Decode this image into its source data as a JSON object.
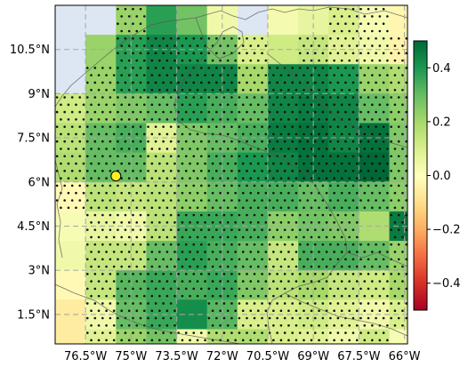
{
  "chart_data": {
    "type": "heatmap",
    "title": "",
    "xlabel": "",
    "ylabel": "",
    "x_ticks": [
      "76.5°W",
      "75°W",
      "73.5°W",
      "72°W",
      "70.5°W",
      "69°W",
      "67.5°W",
      "66°W"
    ],
    "x_tick_values": [
      -76.5,
      -75,
      -73.5,
      -72,
      -70.5,
      -69,
      -67.5,
      -66
    ],
    "y_ticks": [
      "10.5°N",
      "9°N",
      "7.5°N",
      "6°N",
      "4.5°N",
      "3°N",
      "1.5°N"
    ],
    "y_tick_values": [
      10.5,
      9,
      7.5,
      6,
      4.5,
      3,
      1.5
    ],
    "xlim": [
      -77.5,
      -65.9
    ],
    "ylim": [
      0.5,
      12.0
    ],
    "grid": true,
    "cell_size_deg": 1.0,
    "lon_edges": [
      -77.5,
      -76.5,
      -75.5,
      -74.5,
      -73.5,
      -72.5,
      -71.5,
      -70.5,
      -69.5,
      -68.5,
      -67.5,
      -66.5,
      -65.5
    ],
    "lat_edges": [
      12.0,
      11.0,
      10.0,
      9.0,
      8.0,
      7.0,
      6.0,
      5.0,
      4.0,
      3.0,
      2.0,
      1.0,
      0.0
    ],
    "colorbar": {
      "colormap": "RdYlGn",
      "range": [
        -0.5,
        0.5
      ],
      "ticks": [
        0.4,
        0.2,
        0.0,
        -0.2,
        -0.4
      ],
      "tick_labels": [
        "0.4",
        "0.2",
        "0.0",
        "−0.2",
        "−0.4"
      ]
    },
    "values": [
      [
        null,
        null,
        0.22,
        0.38,
        0.28,
        0.04,
        null,
        0.03,
        0.06,
        0.1,
        0.02,
        -0.03
      ],
      [
        null,
        0.22,
        0.38,
        0.44,
        0.4,
        0.28,
        0.1,
        0.12,
        0.14,
        0.08,
        0.04,
        -0.04
      ],
      [
        null,
        0.22,
        0.38,
        0.44,
        0.44,
        0.44,
        0.2,
        0.44,
        0.44,
        0.4,
        0.22,
        0.18
      ],
      [
        0.12,
        0.22,
        0.26,
        0.3,
        0.38,
        0.34,
        0.3,
        0.44,
        0.46,
        0.44,
        0.3,
        0.24
      ],
      [
        0.16,
        0.3,
        0.34,
        0.08,
        0.26,
        0.3,
        0.34,
        0.46,
        0.48,
        0.44,
        0.48,
        0.26
      ],
      [
        0.18,
        0.3,
        0.3,
        0.16,
        0.26,
        0.34,
        0.4,
        0.44,
        0.48,
        0.48,
        0.5,
        0.26
      ],
      [
        -0.02,
        0.16,
        0.14,
        0.16,
        0.24,
        0.3,
        0.34,
        0.34,
        0.3,
        0.34,
        0.3,
        0.24
      ],
      [
        0.02,
        0.06,
        0.04,
        0.16,
        0.36,
        0.36,
        0.34,
        0.24,
        0.28,
        0.26,
        0.18,
        0.46
      ],
      [
        0.04,
        0.14,
        0.14,
        0.3,
        0.38,
        0.34,
        0.3,
        0.14,
        0.34,
        0.34,
        0.3,
        0.22
      ],
      [
        -0.02,
        0.14,
        0.32,
        0.36,
        0.34,
        0.36,
        0.26,
        0.16,
        0.2,
        0.14,
        0.12,
        0.2
      ],
      [
        -0.06,
        0.04,
        0.3,
        0.36,
        0.42,
        0.32,
        0.1,
        0.1,
        0.12,
        0.08,
        0.04,
        0.1
      ],
      [
        -0.06,
        0.08,
        0.22,
        0.28,
        0.04,
        0.18,
        0.18,
        0.1,
        0.08,
        0.04,
        0.12,
        0.02
      ]
    ],
    "stippled": [
      [
        0,
        0,
        1,
        0,
        0,
        0,
        0,
        0,
        0,
        1,
        1,
        0
      ],
      [
        0,
        0,
        1,
        1,
        1,
        1,
        1,
        0,
        1,
        1,
        1,
        1
      ],
      [
        0,
        1,
        1,
        1,
        1,
        1,
        1,
        1,
        1,
        1,
        1,
        1
      ],
      [
        1,
        1,
        1,
        1,
        1,
        1,
        1,
        1,
        1,
        1,
        1,
        1
      ],
      [
        1,
        1,
        1,
        1,
        1,
        1,
        1,
        1,
        1,
        1,
        1,
        1
      ],
      [
        1,
        1,
        1,
        1,
        1,
        1,
        1,
        1,
        1,
        1,
        1,
        1
      ],
      [
        1,
        1,
        1,
        1,
        1,
        1,
        1,
        1,
        1,
        1,
        1,
        1
      ],
      [
        0,
        1,
        1,
        1,
        1,
        1,
        1,
        1,
        1,
        1,
        0,
        1
      ],
      [
        0,
        1,
        1,
        1,
        1,
        1,
        1,
        1,
        1,
        1,
        1,
        1
      ],
      [
        0,
        1,
        1,
        1,
        1,
        1,
        1,
        1,
        1,
        1,
        1,
        1
      ],
      [
        0,
        1,
        1,
        1,
        0,
        1,
        1,
        1,
        1,
        1,
        1,
        1
      ],
      [
        0,
        1,
        1,
        1,
        1,
        1,
        1,
        1,
        1,
        1,
        1,
        0
      ]
    ],
    "ocean_color": "#dde6f3",
    "marker": {
      "lon": -75.5,
      "lat": 6.2,
      "color": "#ffee22"
    }
  }
}
